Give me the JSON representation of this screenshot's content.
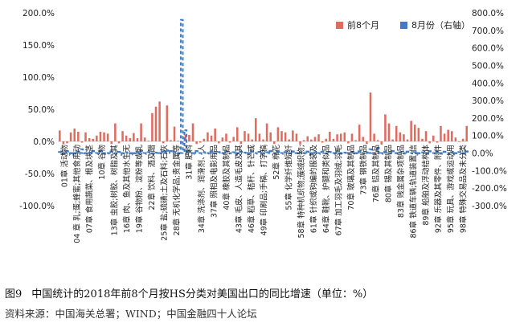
{
  "figure": {
    "number": "图9",
    "caption": "中国统计的2018年前8个月按HS分类对美国出口的同比增速（单位：%）",
    "source": "资料来源：中国海关总署；WIND；中国金融四十人论坛"
  },
  "chart_data": {
    "type": "bar",
    "legend_position": "top-right",
    "grid": false,
    "y_left": {
      "min": -100,
      "max": 200,
      "step": 50,
      "ticks": [
        "-100.0%",
        "-50.0%",
        "0.0%",
        "50.0%",
        "100.0%",
        "150.0%",
        "200.0%"
      ]
    },
    "y_right": {
      "min": -300,
      "max": 800,
      "step": 100,
      "ticks": [
        "-300.0%",
        "-200.0%",
        "-100.0%",
        "0.0%",
        "100.0%",
        "200.0%",
        "300.0%",
        "400.0%",
        "500.0%",
        "600.0%",
        "700.0%",
        "800.0%"
      ]
    },
    "category_labels": [
      "01章 活动物",
      "04 章 乳;蛋;蜂蜜;其他食用动",
      "07章 食用蔬菜、根及块茎",
      "10章 谷物",
      "13章 虫胶;树胶、树脂及其",
      "16章 肉、鱼及其他水生无",
      "19章 谷物粉、淀粉等或乳",
      "22章 饮料、酒及醋",
      "25章 盐;硫磺;土及石料;石灰",
      "28章 无机化学品;贵金属等",
      "31章 肥料",
      "34章 洗涤剂、润滑剂、人",
      "37章 照相及电影用品",
      "40章 橡胶及其制品",
      "43章 毛皮、人造毛皮及其",
      "46章 稻草、秸秆、针芒或",
      "49章 印刷品;手稿、打字稿",
      "52章 棉花",
      "55章 化学纤维短纤",
      "58章 特种机织物;簇绒织物;",
      "61章 针织或钩编的服装及",
      "64章 鞋靴、护腿和类似品",
      "67章 加工羽毛及羽绒;羽毛",
      "70章 玻璃及其制品",
      "73章 钢铁制品",
      "76章 铝及其制品",
      "80章 锡及其制品",
      "83章 贱金属杂项制品",
      "86章 铁道车辆;轨道装置;信",
      "89章 船舶及浮动结构体",
      "92章 乐器及其零件、附件",
      "95章 玩具、游戏或运动用",
      "98章 特殊交易品及未分类"
    ],
    "series": [
      {
        "name": "前8个月",
        "axis": "left",
        "color": "#e06b5f",
        "values": [
          17,
          -4,
          -3,
          14,
          20,
          15,
          -2,
          14,
          5,
          4,
          9,
          15,
          14,
          12,
          -4,
          28,
          -3,
          16,
          9,
          5,
          13,
          5,
          28,
          6,
          1,
          44,
          54,
          62,
          -3,
          56,
          2,
          23,
          1,
          -2,
          10,
          10,
          28,
          -4,
          -2,
          4,
          14,
          9,
          20,
          -3,
          6,
          12,
          -2,
          7,
          22,
          -4,
          16,
          12,
          3,
          36,
          12,
          3,
          28,
          14,
          -4,
          22,
          16,
          14,
          3,
          17,
          12,
          -5,
          2,
          8,
          3,
          7,
          11,
          -2,
          4,
          15,
          4,
          11,
          12,
          14,
          -3,
          12,
          2,
          26,
          7,
          -4,
          76,
          12,
          2,
          -5,
          42,
          28,
          3,
          24,
          14,
          11,
          3,
          32,
          26,
          21,
          4,
          16,
          -3,
          9,
          -2,
          24,
          12,
          18,
          16,
          6,
          -1,
          4,
          24
        ]
      },
      {
        "name": "8月份（右轴）",
        "axis": "right",
        "color": "#3f7cc8",
        "values": [
          6,
          -8,
          11,
          -10,
          -13,
          8,
          22,
          -8,
          3,
          12,
          -5,
          11,
          -6,
          -3,
          9,
          -4,
          7,
          -11,
          4,
          -2,
          -9,
          6,
          12,
          -6,
          5,
          -4,
          3,
          -7,
          9,
          15,
          12,
          6,
          -3,
          760,
          130,
          8,
          -5,
          12,
          -6,
          4,
          -3,
          9,
          -8,
          6,
          -4,
          11,
          -2,
          5,
          -12,
          8,
          3,
          -6,
          10,
          -4,
          7,
          -9,
          5,
          12,
          -3,
          8,
          -5,
          6,
          -2,
          10,
          -7,
          4,
          -3,
          9,
          -11,
          5,
          -6,
          8,
          -2,
          7,
          -4,
          12,
          -9,
          3,
          -5,
          6,
          -8,
          10,
          -3,
          4,
          22,
          -6,
          30,
          -5,
          8,
          -3,
          12,
          -7,
          5,
          -4,
          9,
          -2,
          6,
          -10,
          4,
          -6,
          11,
          -3,
          7,
          -5,
          8,
          -2,
          5,
          -9,
          6,
          -4,
          10
        ]
      }
    ]
  }
}
